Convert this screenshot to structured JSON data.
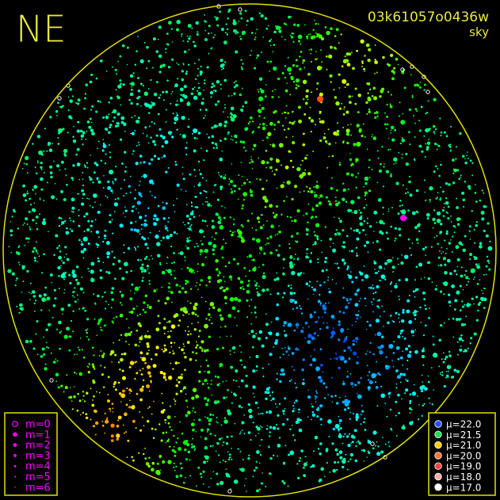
{
  "header": {
    "direction": "NE",
    "id": "03k61057o0436w",
    "subtitle": "sky"
  },
  "magnitude_legend": [
    {
      "label": "m=0",
      "color": "#ff00ff"
    },
    {
      "label": "m=1",
      "color": "#ff00ff"
    },
    {
      "label": "m=2",
      "color": "#ff00ff"
    },
    {
      "label": "m=3",
      "color": "#ff00ff"
    },
    {
      "label": "m=4",
      "color": "#ff00ff"
    },
    {
      "label": "m=5",
      "color": "#ff00ff"
    },
    {
      "label": "m=6",
      "color": "#ff00ff"
    }
  ],
  "brightness_legend": [
    {
      "label": "μ=22.0",
      "color": "#2255ff"
    },
    {
      "label": "μ=21.5",
      "color": "#22dd55"
    },
    {
      "label": "μ=21.0",
      "color": "#ffcc00"
    },
    {
      "label": "μ=20.0",
      "color": "#ff7733"
    },
    {
      "label": "μ=19.0",
      "color": "#ff4444"
    },
    {
      "label": "μ=18.0",
      "color": "#ffaaaa"
    },
    {
      "label": "μ=17.0",
      "color": "#ffffff"
    }
  ]
}
